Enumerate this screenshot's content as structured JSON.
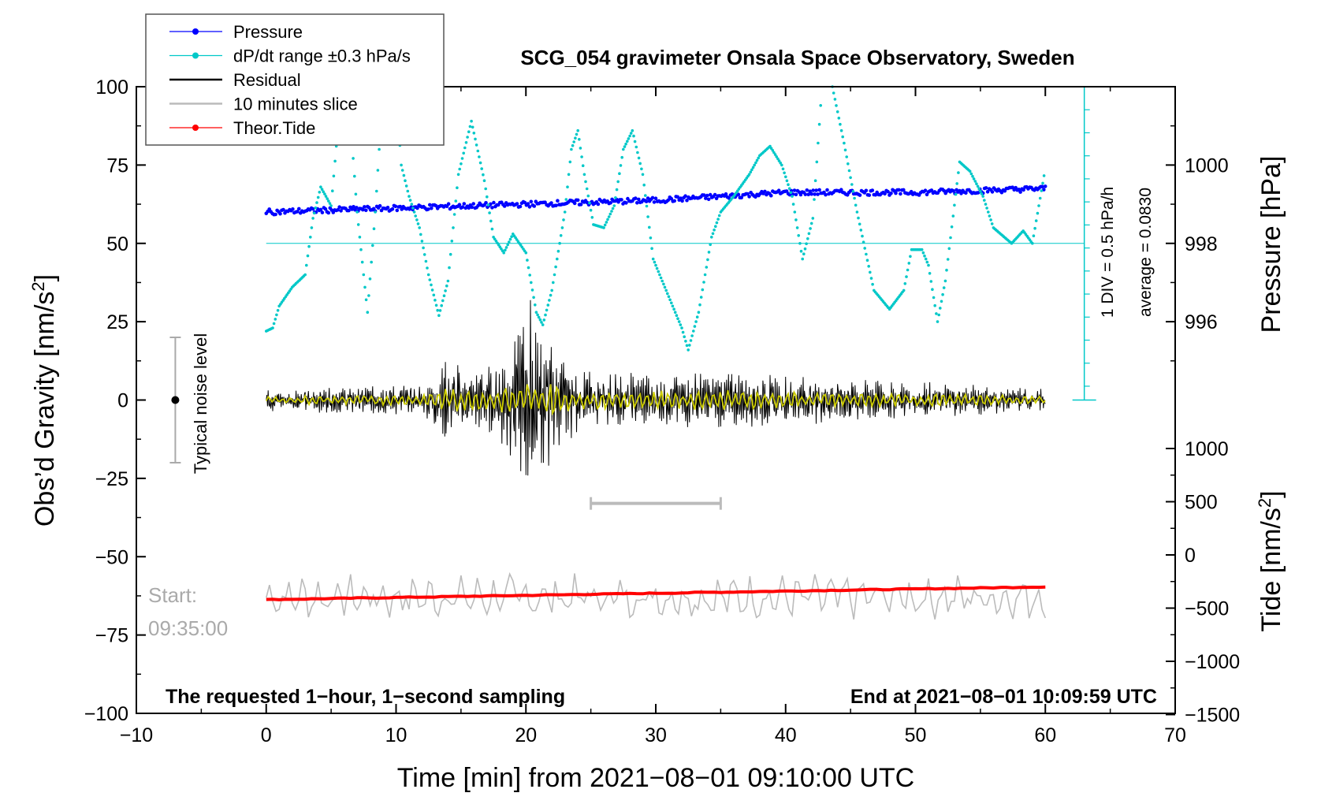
{
  "chart_data": {
    "type": "line",
    "title": "SCG_054 gravimeter Onsala Space Observatory, Sweden",
    "xlabel": "Time [min] from 2021−08−01 09:10:00 UTC",
    "ylabel_left": "Obs’d Gravity [nm/s",
    "ylabel_left_sup": "2",
    "ylabel_left_end": "]",
    "ylabel_right_pressure": "Pressure [hPa]",
    "ylabel_right_tide": "Tide [nm/s",
    "ylabel_right_tide_sup": "2",
    "ylabel_right_tide_end": "]",
    "xlim": [
      -10,
      70
    ],
    "ylim": [
      -100,
      100
    ],
    "x_ticks": [
      "−10",
      "0",
      "10",
      "20",
      "30",
      "40",
      "50",
      "60",
      "70"
    ],
    "y_ticks": [
      "−100",
      "−75",
      "−50",
      "−25",
      "0",
      "25",
      "50",
      "75",
      "100"
    ],
    "pressure_axis": {
      "ticks": [
        "996",
        "998",
        "1000"
      ],
      "tick_values": [
        996,
        998,
        1000
      ]
    },
    "tide_axis": {
      "ticks": [
        "−1500",
        "−1000",
        "−500",
        "0",
        "500",
        "1000"
      ],
      "tick_values": [
        -1500,
        -1000,
        -500,
        0,
        500,
        1000
      ]
    },
    "legend": [
      {
        "label": "Pressure",
        "color": "#0000ff",
        "marker": true
      },
      {
        "label": "dP/dt range ±0.3 hPa/s",
        "color": "#00c8c8",
        "marker": true
      },
      {
        "label": "Residual",
        "color": "#000000",
        "marker": false
      },
      {
        "label": "10 minutes slice",
        "color": "#bbbbbb",
        "marker": false
      },
      {
        "label": "Theor.Tide",
        "color": "#ff0000",
        "marker": true
      }
    ],
    "annotations": {
      "noise_label": "Typical noise level",
      "noise_range": [
        -20,
        20
      ],
      "scale_line1": "1 DIV = 0.5 hPa/h",
      "scale_line2": "average = 0.0830",
      "start_label": "Start:",
      "start_time": "09:35:00",
      "footer_left": "The requested 1−hour, 1−second sampling",
      "footer_right": "End at 2021−08−01 10:09:59 UTC",
      "slice_bar": [
        25,
        35
      ]
    },
    "series": [
      {
        "name": "Pressure",
        "color": "#0000ff",
        "pressure_hpa": [
          [
            0,
            998.8
          ],
          [
            10,
            998.9
          ],
          [
            20,
            999.0
          ],
          [
            30,
            999.1
          ],
          [
            40,
            999.3
          ],
          [
            50,
            999.3
          ],
          [
            60,
            999.4
          ]
        ]
      },
      {
        "name": "dP/dt",
        "color": "#00c8c8",
        "points": [
          [
            0,
            22
          ],
          [
            0.5,
            23
          ],
          [
            1,
            30
          ],
          [
            2,
            36
          ],
          [
            3,
            40
          ],
          [
            3.6,
            58
          ],
          [
            4.2,
            68
          ],
          [
            5,
            62
          ],
          [
            5.8,
            100
          ],
          [
            6.3,
            100
          ],
          [
            7,
            60
          ],
          [
            7.8,
            28
          ],
          [
            8.4,
            60
          ],
          [
            9,
            100
          ],
          [
            10,
            100
          ],
          [
            10.4,
            75
          ],
          [
            11,
            65
          ],
          [
            11.8,
            55
          ],
          [
            12.5,
            40
          ],
          [
            13.3,
            27
          ],
          [
            14,
            38
          ],
          [
            14.8,
            72
          ],
          [
            15.8,
            89
          ],
          [
            16.8,
            70
          ],
          [
            17.5,
            52
          ],
          [
            18.3,
            47
          ],
          [
            19,
            53
          ],
          [
            20,
            47
          ],
          [
            20.8,
            28
          ],
          [
            21.3,
            24
          ],
          [
            22,
            35
          ],
          [
            23,
            60
          ],
          [
            23.5,
            80
          ],
          [
            24,
            86
          ],
          [
            24.5,
            72
          ],
          [
            25.2,
            56
          ],
          [
            26,
            55
          ],
          [
            26.8,
            62
          ],
          [
            27.5,
            80
          ],
          [
            28.2,
            86
          ],
          [
            29,
            72
          ],
          [
            29.8,
            45
          ],
          [
            31,
            33
          ],
          [
            32,
            23
          ],
          [
            32.5,
            16
          ],
          [
            33.3,
            28
          ],
          [
            34.3,
            52
          ],
          [
            35,
            60
          ],
          [
            36,
            65
          ],
          [
            37.2,
            72
          ],
          [
            38,
            78
          ],
          [
            38.8,
            81
          ],
          [
            39.7,
            75
          ],
          [
            40.5,
            65
          ],
          [
            41.3,
            45
          ],
          [
            42.1,
            58
          ],
          [
            42.8,
            100
          ],
          [
            43.6,
            100
          ],
          [
            44.5,
            82
          ],
          [
            45.5,
            60
          ],
          [
            46.8,
            35
          ],
          [
            48,
            29
          ],
          [
            49.1,
            35
          ],
          [
            49.7,
            48
          ],
          [
            50.5,
            48
          ],
          [
            51,
            43
          ],
          [
            51.7,
            25
          ],
          [
            52.3,
            38
          ],
          [
            53.4,
            76
          ],
          [
            54.2,
            73
          ],
          [
            55.2,
            65
          ],
          [
            56,
            55
          ],
          [
            57.4,
            50
          ],
          [
            58.3,
            54
          ],
          [
            59,
            50
          ],
          [
            60,
            74
          ]
        ]
      },
      {
        "name": "Residual",
        "color": "#000000",
        "amplitude": [
          [
            0,
            3
          ],
          [
            12,
            4
          ],
          [
            14,
            12
          ],
          [
            15.8,
            7
          ],
          [
            18,
            10
          ],
          [
            19,
            18
          ],
          [
            20.2,
            28
          ],
          [
            21.2,
            22
          ],
          [
            22.5,
            12
          ],
          [
            24.5,
            7
          ],
          [
            36,
            7
          ],
          [
            60,
            3
          ]
        ]
      },
      {
        "name": "10 minutes slice",
        "color": "#bbbbbb",
        "center": -63,
        "amplitude": 6
      },
      {
        "name": "Theor.Tide",
        "color": "#ff0000",
        "tide_nm_s2": [
          [
            0,
            -420
          ],
          [
            60,
            -300
          ]
        ]
      }
    ]
  }
}
